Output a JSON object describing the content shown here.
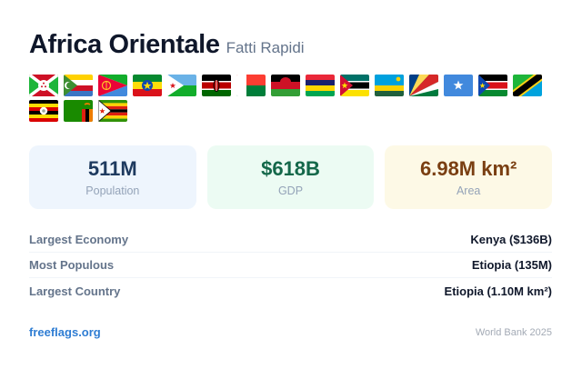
{
  "header": {
    "title": "Africa Orientale",
    "subtitle": "Fatti Rapidi"
  },
  "flags": [
    {
      "icon": "burundi-flag-icon"
    },
    {
      "icon": "comoros-flag-icon"
    },
    {
      "icon": "eritrea-flag-icon"
    },
    {
      "icon": "ethiopia-flag-icon"
    },
    {
      "icon": "djibouti-flag-icon"
    },
    {
      "icon": "kenya-flag-icon"
    },
    {
      "icon": "madagascar-flag-icon"
    },
    {
      "icon": "malawi-flag-icon"
    },
    {
      "icon": "mauritius-flag-icon"
    },
    {
      "icon": "mozambique-flag-icon"
    },
    {
      "icon": "rwanda-flag-icon"
    },
    {
      "icon": "seychelles-flag-icon"
    },
    {
      "icon": "somalia-flag-icon"
    },
    {
      "icon": "south-sudan-flag-icon"
    },
    {
      "icon": "tanzania-flag-icon"
    },
    {
      "icon": "uganda-flag-icon"
    },
    {
      "icon": "zambia-flag-icon"
    },
    {
      "icon": "zimbabwe-flag-icon"
    }
  ],
  "stats": [
    {
      "value": "511M",
      "label": "Population",
      "color": "#1e3a5f",
      "bg": "#eef5fd"
    },
    {
      "value": "$618B",
      "label": "GDP",
      "color": "#14684a",
      "bg": "#ecfbf3"
    },
    {
      "value": "6.98M km²",
      "label": "Area",
      "color": "#7a3f12",
      "bg": "#fdf9e6"
    }
  ],
  "rows": [
    {
      "label": "Largest Economy",
      "value": "Kenya ($136B)"
    },
    {
      "label": "Most Populous",
      "value": "Etiopia (135M)"
    },
    {
      "label": "Largest Country",
      "value": "Etiopia (1.10M km²)"
    }
  ],
  "footer": {
    "brand": "freeflags.org",
    "source": "World Bank 2025"
  }
}
